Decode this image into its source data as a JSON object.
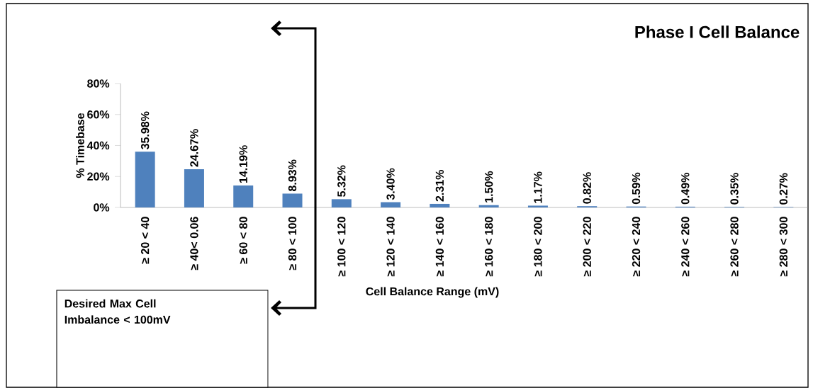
{
  "chart_data": {
    "type": "bar",
    "title": "Phase I Cell Balance",
    "xlabel": "Cell Balance Range (mV)",
    "ylabel": "% Timebase",
    "categories": [
      "≥ 20 < 40",
      "≥ 40< 0.06",
      "≥ 60 < 80",
      "≥ 80 < 100",
      "≥ 100 < 120",
      "≥ 120 < 140",
      "≥ 140 < 160",
      "≥ 160 <  180",
      "≥ 180 < 200",
      "≥ 200 < 220",
      "≥ 220 < 240",
      "≥ 240 < 260",
      "≥ 260 < 280",
      "≥ 280 < 300"
    ],
    "values": [
      35.98,
      24.67,
      14.19,
      8.93,
      5.32,
      3.4,
      2.31,
      1.5,
      1.17,
      0.82,
      0.59,
      0.49,
      0.35,
      0.27
    ],
    "value_labels": [
      "35.98%",
      "24.67%",
      "14.19%",
      "8.93%",
      "5.32%",
      "3.40%",
      "2.31%",
      "1.50%",
      "1.17%",
      "0.82%",
      "0.59%",
      "0.49%",
      "0.35%",
      "0.27%"
    ],
    "color": "#4f81bd",
    "ylim": [
      0,
      80
    ],
    "yticks": [
      {
        "value": 0,
        "label": "0%"
      },
      {
        "value": 20,
        "label": "20%"
      },
      {
        "value": 40,
        "label": "40%"
      },
      {
        "value": 60,
        "label": "60%"
      },
      {
        "value": 80,
        "label": "80%"
      }
    ],
    "annotations": [
      "Desired Max Cell Imbalance < 100mV"
    ],
    "grid": false
  }
}
